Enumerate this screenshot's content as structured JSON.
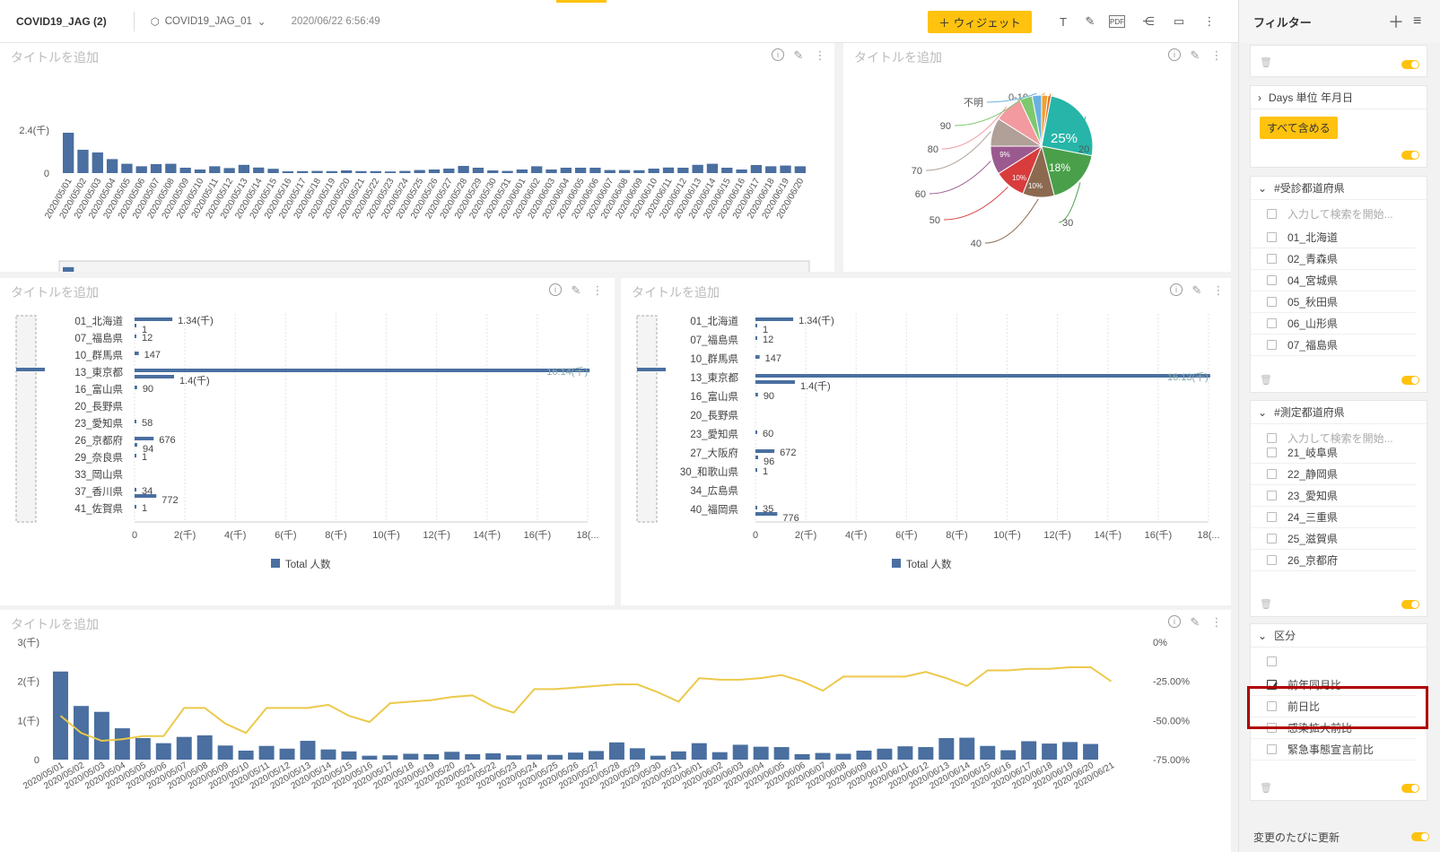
{
  "header": {
    "title": "COVID19_JAG (2)",
    "dataset": "COVID19_JAG_01",
    "timestamp": "2020/06/22 6:56:49",
    "widget_button": "ウィジェット",
    "pdf_label": "PDF"
  },
  "panels": {
    "placeholder_title": "タイトルを追加"
  },
  "chart_data": [
    {
      "type": "bar",
      "title": "",
      "categories": [
        "2020/05/01",
        "2020/05/02",
        "2020/05/03",
        "2020/05/04",
        "2020/05/05",
        "2020/05/06",
        "2020/05/07",
        "2020/05/08",
        "2020/05/09",
        "2020/05/10",
        "2020/05/11",
        "2020/05/12",
        "2020/05/13",
        "2020/05/14",
        "2020/05/15",
        "2020/05/16",
        "2020/05/17",
        "2020/05/18",
        "2020/05/19",
        "2020/05/20",
        "2020/05/21",
        "2020/05/22",
        "2020/05/23",
        "2020/05/24",
        "2020/05/25",
        "2020/05/26",
        "2020/05/27",
        "2020/05/28",
        "2020/05/29",
        "2020/05/30",
        "2020/05/31",
        "2020/06/01",
        "2020/06/02",
        "2020/06/03",
        "2020/06/04",
        "2020/06/05",
        "2020/06/06",
        "2020/06/07",
        "2020/06/08",
        "2020/06/09",
        "2020/06/10",
        "2020/06/11",
        "2020/06/12",
        "2020/06/13",
        "2020/06/14",
        "2020/06/15",
        "2020/06/16",
        "2020/06/17",
        "2020/06/18",
        "2020/06/19",
        "2020/06/20"
      ],
      "values": [
        2250,
        1300,
        1150,
        780,
        520,
        380,
        500,
        520,
        300,
        200,
        380,
        280,
        460,
        310,
        240,
        100,
        110,
        120,
        110,
        150,
        110,
        110,
        90,
        120,
        170,
        200,
        250,
        400,
        300,
        150,
        120,
        200,
        380,
        200,
        300,
        300,
        300,
        170,
        170,
        160,
        250,
        310,
        300,
        460,
        520,
        300,
        200,
        450,
        380,
        420,
        380
      ],
      "y_ticks": [
        "0",
        "2.4(千)"
      ],
      "ylim": [
        0,
        2400
      ]
    },
    {
      "type": "pie",
      "center_labels": [
        "25%",
        "18%",
        "10%",
        "10%",
        "9%"
      ],
      "labels": [
        "0-10",
        "10",
        "20",
        "30",
        "40",
        "50",
        "60",
        "70",
        "80",
        "90",
        "不明"
      ],
      "values": [
        2,
        1,
        25,
        18,
        10,
        10,
        9,
        9,
        9,
        4,
        3
      ],
      "colors": [
        "#f0a030",
        "#e07020",
        "#26b5a8",
        "#4aa04a",
        "#8b6a50",
        "#d83c3c",
        "#9b5a8f",
        "#b0a098",
        "#f29aa0",
        "#7ec86e",
        "#6ab0e0"
      ]
    },
    {
      "type": "bar",
      "orientation": "horizontal",
      "categories": [
        "01_北海道",
        "07_福島県",
        "10_群馬県",
        "13_東京都",
        "16_富山県",
        "20_長野県",
        "23_愛知県",
        "26_京都府",
        "29_奈良県",
        "33_岡山県",
        "37_香川県",
        "41_佐賀県"
      ],
      "value_labels": [
        [
          "1.34(千)",
          "1"
        ],
        [
          "12"
        ],
        [
          "147"
        ],
        [
          "16.14(千)",
          "1.4(千)"
        ],
        [
          "90"
        ],
        [
          ""
        ],
        [
          "58"
        ],
        [
          "676",
          "94"
        ],
        [
          "1"
        ],
        [
          ""
        ],
        [
          "34",
          "772"
        ],
        [
          "1"
        ]
      ],
      "x_ticks": [
        "0",
        "2(千)",
        "4(千)",
        "6(千)",
        "8(千)",
        "10(千)",
        "12(千)",
        "14(千)",
        "16(千)",
        "18(..."
      ],
      "legend": "Total 人数"
    },
    {
      "type": "bar",
      "orientation": "horizontal",
      "categories": [
        "01_北海道",
        "07_福島県",
        "10_群馬県",
        "13_東京都",
        "16_富山県",
        "20_長野県",
        "23_愛知県",
        "27_大阪府",
        "30_和歌山県",
        "34_広島県",
        "40_福岡県"
      ],
      "value_labels": [
        [
          "1.34(千)",
          "1"
        ],
        [
          "12"
        ],
        [
          "147"
        ],
        [
          "16.13(千)",
          "1.4(千)"
        ],
        [
          "90"
        ],
        [
          ""
        ],
        [
          "60"
        ],
        [
          "672",
          "96"
        ],
        [
          "1"
        ],
        [
          ""
        ],
        [
          "35",
          "776"
        ]
      ],
      "x_ticks": [
        "0",
        "2(千)",
        "4(千)",
        "6(千)",
        "8(千)",
        "10(千)",
        "12(千)",
        "14(千)",
        "16(千)",
        "18(..."
      ],
      "legend": "Total 人数"
    },
    {
      "type": "bar+line",
      "categories": [
        "2020/05/01",
        "2020/05/02",
        "2020/05/03",
        "2020/05/04",
        "2020/05/05",
        "2020/05/06",
        "2020/05/07",
        "2020/05/08",
        "2020/05/09",
        "2020/05/10",
        "2020/05/11",
        "2020/05/12",
        "2020/05/13",
        "2020/05/14",
        "2020/05/15",
        "2020/05/16",
        "2020/05/17",
        "2020/05/18",
        "2020/05/19",
        "2020/05/20",
        "2020/05/21",
        "2020/05/22",
        "2020/05/23",
        "2020/05/24",
        "2020/05/25",
        "2020/05/26",
        "2020/05/27",
        "2020/05/28",
        "2020/05/29",
        "2020/05/30",
        "2020/05/31",
        "2020/06/01",
        "2020/06/02",
        "2020/06/03",
        "2020/06/04",
        "2020/06/05",
        "2020/06/06",
        "2020/06/07",
        "2020/06/08",
        "2020/06/09",
        "2020/06/10",
        "2020/06/11",
        "2020/06/12",
        "2020/06/13",
        "2020/06/14",
        "2020/06/15",
        "2020/06/16",
        "2020/06/17",
        "2020/06/18",
        "2020/06/19",
        "2020/06/20",
        "2020/06/21"
      ],
      "bar_values": [
        2250,
        1370,
        1220,
        800,
        550,
        420,
        580,
        620,
        360,
        230,
        350,
        280,
        480,
        260,
        210,
        100,
        110,
        150,
        140,
        200,
        140,
        160,
        110,
        130,
        120,
        180,
        220,
        440,
        290,
        100,
        210,
        420,
        190,
        380,
        330,
        320,
        140,
        170,
        150,
        230,
        280,
        340,
        320,
        550,
        560,
        350,
        240,
        470,
        410,
        450,
        400,
        0
      ],
      "line_values": [
        -47,
        -58,
        -63,
        -62,
        -60,
        -60,
        -42,
        -42,
        -52,
        -58,
        -42,
        -42,
        -42,
        -40,
        -47,
        -51,
        -39,
        -38,
        -37,
        -35,
        -34,
        -41,
        -45,
        -30,
        -30,
        -29,
        -28,
        -27,
        -27,
        -32,
        -38,
        -23,
        -24,
        -24,
        -23,
        -21,
        -25,
        -31,
        -22,
        -22,
        -22,
        -22,
        -19,
        -23,
        -28,
        -18,
        -18,
        -17,
        -17,
        -16,
        -16,
        -25
      ],
      "y_left_ticks": [
        "0",
        "1(千)",
        "2(千)",
        "3(千)"
      ],
      "y_right_ticks": [
        "0%",
        "-25.00%",
        "-50.00%",
        "-75.00%"
      ],
      "ylim_left": [
        0,
        3000
      ],
      "ylim_right": [
        -75,
        0
      ]
    }
  ],
  "sidebar": {
    "title": "フィルター",
    "days_filter": {
      "label": "Days 単位 年月日",
      "button": "すべて含める"
    },
    "filter1": {
      "label": "#受診都道府県",
      "search_placeholder": "入力して検索を開始...",
      "items": [
        "01_北海道",
        "02_青森県",
        "04_宮城県",
        "05_秋田県",
        "06_山形県",
        "07_福島県"
      ]
    },
    "filter2": {
      "label": "#測定都道府県",
      "search_placeholder": "入力して検索を開始...",
      "items": [
        "21_岐阜県",
        "22_静岡県",
        "23_愛知県",
        "24_三重県",
        "25_滋賀県",
        "26_京都府"
      ]
    },
    "filter3": {
      "label": "区分",
      "items": [
        "前年同月比",
        "前日比",
        "感染拡大前比",
        "緊急事態宣言前比"
      ]
    },
    "auto_update": "変更のたびに更新"
  }
}
